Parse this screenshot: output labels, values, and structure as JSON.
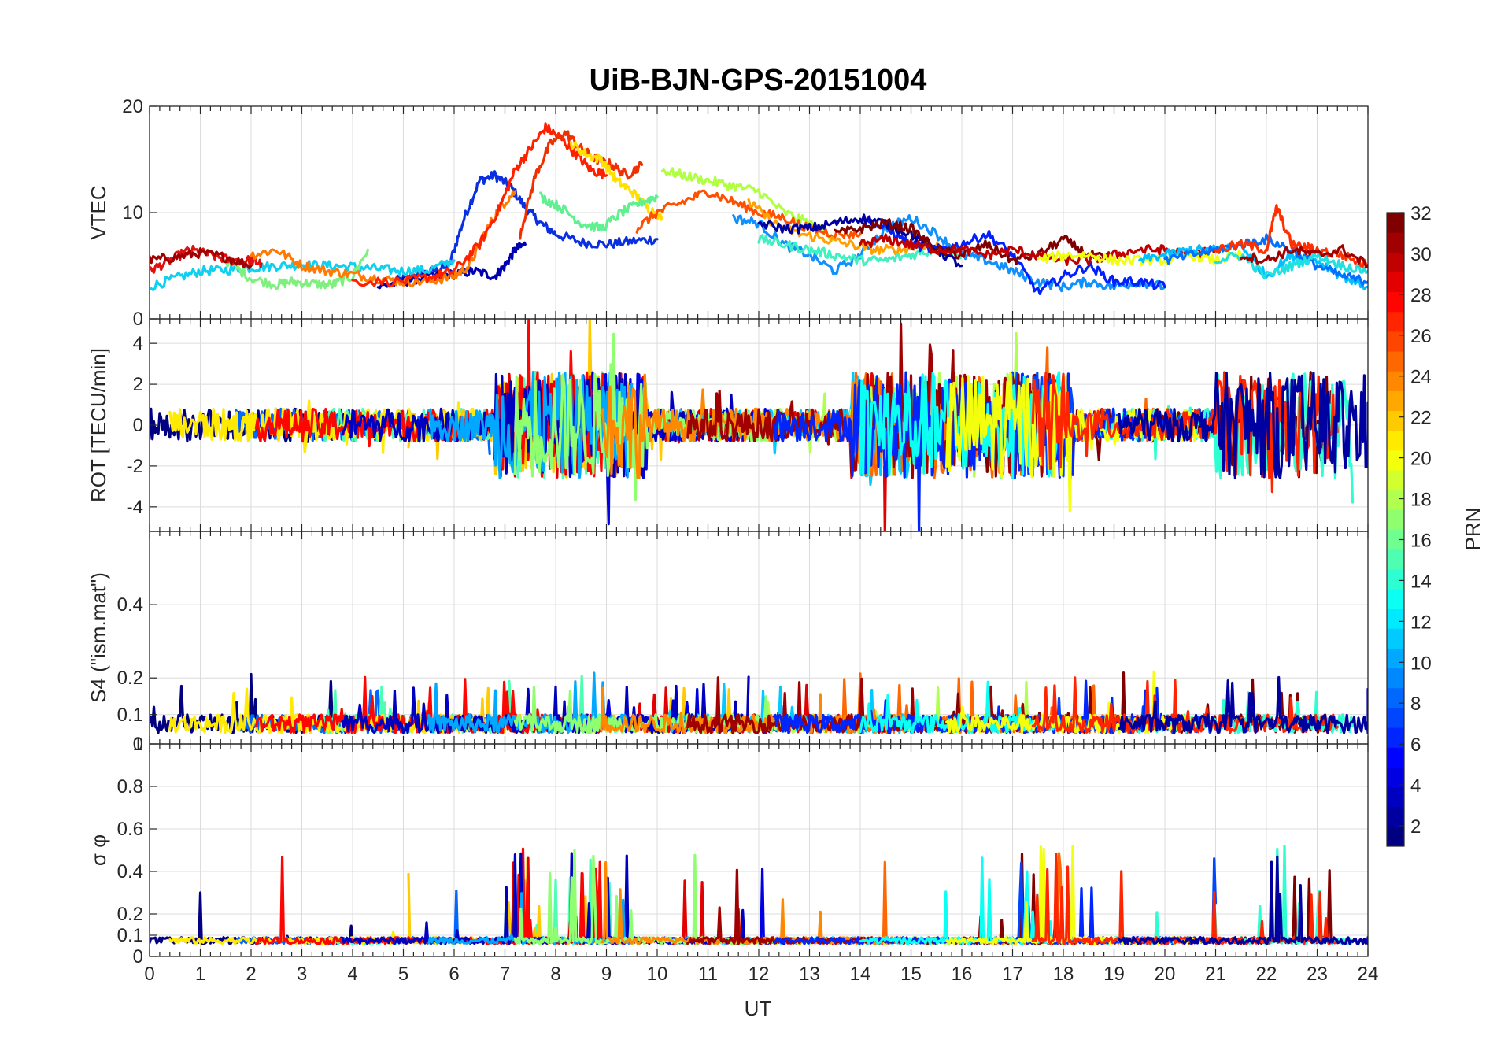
{
  "chart_data": {
    "type": "line",
    "title": "UiB-BJN-GPS-20151004",
    "xlabel": "UT",
    "xlim": [
      0,
      24
    ],
    "x_ticks": [
      "0",
      "1",
      "2",
      "3",
      "4",
      "5",
      "6",
      "7",
      "8",
      "9",
      "10",
      "11",
      "12",
      "13",
      "14",
      "15",
      "16",
      "17",
      "18",
      "19",
      "20",
      "21",
      "22",
      "23",
      "24"
    ],
    "colorbar": {
      "label": "PRN",
      "range": [
        1,
        32
      ],
      "ticks": [
        "2",
        "4",
        "6",
        "8",
        "10",
        "12",
        "14",
        "16",
        "18",
        "20",
        "22",
        "24",
        "26",
        "28",
        "30",
        "32"
      ],
      "colormap": "jet"
    },
    "panels": [
      {
        "id": "vtec",
        "ylabel": "VTEC",
        "ylim": [
          0,
          20
        ],
        "y_ticks": [
          "0",
          "10",
          "20"
        ],
        "series": [
          {
            "prn": 5,
            "color": "#0a2fe0",
            "x": [
              4.8,
              5.2,
              5.6,
              5.9,
              6.2,
              6.5,
              6.8,
              7.1,
              7.4,
              7.7,
              8.0,
              8.5,
              9.0,
              9.5,
              10.0
            ],
            "y": [
              3.5,
              4.0,
              4.5,
              5.0,
              9.5,
              13.0,
              13.5,
              12.5,
              10.5,
              9.0,
              8.0,
              7.2,
              7.0,
              7.3,
              7.5
            ]
          },
          {
            "prn": 3,
            "color": "#0000b0",
            "x": [
              4.5,
              5.0,
              5.5,
              6.0,
              6.4,
              6.8,
              7.0,
              7.2,
              7.4
            ],
            "y": [
              3.0,
              3.5,
              4.0,
              4.2,
              4.5,
              4.0,
              5.0,
              6.5,
              7.0
            ]
          },
          {
            "prn": 12,
            "color": "#10d0f0",
            "x": [
              0.0,
              0.5,
              1.0,
              1.5,
              2.0,
              2.5,
              3.0,
              3.5,
              4.0,
              4.5,
              5.0,
              5.5,
              6.0
            ],
            "y": [
              3.0,
              3.8,
              4.5,
              4.6,
              4.8,
              5.0,
              5.1,
              5.0,
              4.9,
              4.7,
              4.5,
              4.6,
              5.5
            ]
          },
          {
            "prn": 16,
            "color": "#7ff07f",
            "x": [
              1.5,
              2.0,
              2.5,
              2.8,
              3.2,
              3.6,
              4.0,
              4.3
            ],
            "y": [
              5.5,
              3.8,
              3.2,
              3.5,
              3.3,
              3.2,
              4.0,
              6.5
            ]
          },
          {
            "prn": 29,
            "color": "#e01010",
            "x": [
              0.0,
              0.4,
              0.8,
              1.2,
              1.6,
              2.0,
              2.2
            ],
            "y": [
              4.5,
              5.5,
              6.5,
              6.0,
              5.5,
              5.5,
              5.2
            ]
          },
          {
            "prn": 31,
            "color": "#a00000",
            "x": [
              0.0,
              0.5,
              1.0,
              1.5,
              2.0
            ],
            "y": [
              5.5,
              5.8,
              6.2,
              5.8,
              5.0
            ]
          },
          {
            "prn": 24,
            "color": "#ff7a00",
            "x": [
              2.0,
              2.5,
              3.0,
              3.5,
              4.0,
              4.5,
              5.0,
              5.5,
              6.0,
              6.3,
              6.6,
              6.9,
              7.2
            ],
            "y": [
              6.0,
              6.5,
              5.0,
              4.5,
              4.2,
              3.8,
              3.5,
              3.5,
              4.0,
              5.0,
              8.0,
              10.5,
              12.0
            ]
          },
          {
            "prn": 28,
            "color": "#ff2000",
            "x": [
              4.0,
              5.0,
              5.6,
              6.0,
              6.5,
              6.9,
              7.2,
              7.5,
              7.8,
              8.1,
              8.4,
              8.7,
              9.0
            ],
            "y": [
              3.5,
              3.5,
              4.0,
              4.5,
              7.0,
              10.5,
              14.0,
              16.0,
              18.0,
              17.0,
              15.5,
              14.0,
              13.5
            ]
          },
          {
            "prn": 27,
            "color": "#f03000",
            "x": [
              7.3,
              7.6,
              7.9,
              8.2,
              8.5,
              8.8,
              9.1,
              9.4,
              9.7
            ],
            "y": [
              8.0,
              13.5,
              16.5,
              17.5,
              16.0,
              15.0,
              14.5,
              13.5,
              14.5
            ]
          },
          {
            "prn": 21,
            "color": "#ffe000",
            "x": [
              8.3,
              8.6,
              8.9,
              9.2,
              9.5,
              9.8,
              10.1
            ],
            "y": [
              16.5,
              15.5,
              15.0,
              13.0,
              12.0,
              10.5,
              9.5
            ]
          },
          {
            "prn": 15,
            "color": "#60f090",
            "x": [
              7.7,
              8.1,
              8.5,
              8.9,
              9.3,
              9.7,
              10.0
            ],
            "y": [
              11.5,
              10.5,
              9.0,
              8.5,
              10.0,
              11.0,
              11.5
            ]
          },
          {
            "prn": 18,
            "color": "#b0ff40",
            "x": [
              10.1,
              10.5,
              11.0,
              11.5,
              12.0,
              12.5,
              13.0,
              13.5
            ],
            "y": [
              14.0,
              13.5,
              13.0,
              12.5,
              12.0,
              10.0,
              9.0,
              7.5
            ]
          },
          {
            "prn": 26,
            "color": "#ff5000",
            "x": [
              9.6,
              10.0,
              10.5,
              11.0,
              11.5,
              12.0,
              12.5,
              13.0,
              13.5,
              14.0
            ],
            "y": [
              8.5,
              10.0,
              11.0,
              12.0,
              11.0,
              10.0,
              9.5,
              8.5,
              8.0,
              8.0
            ]
          },
          {
            "prn": 10,
            "color": "#1090ff",
            "x": [
              11.5,
              12.0,
              12.5,
              13.0,
              13.5,
              14.0,
              14.5,
              15.0,
              15.5,
              16.0,
              16.5,
              17.0,
              17.5,
              18.0,
              18.5,
              19.0,
              19.5,
              20.0
            ],
            "y": [
              9.5,
              9.0,
              7.0,
              6.0,
              4.5,
              6.0,
              8.5,
              9.5,
              8.0,
              6.0,
              5.5,
              4.5,
              3.5,
              3.0,
              3.5,
              3.0,
              3.5,
              3.0
            ]
          },
          {
            "prn": 22,
            "color": "#ffa000",
            "x": [
              11.8,
              12.3,
              12.8,
              13.3,
              13.8,
              14.3,
              14.8,
              15.3,
              15.8
            ],
            "y": [
              11.0,
              9.0,
              8.0,
              7.5,
              7.0,
              6.5,
              6.5,
              7.0,
              6.5
            ]
          },
          {
            "prn": 14,
            "color": "#40f0c0",
            "x": [
              12.0,
              12.5,
              13.0,
              13.5,
              14.0,
              14.5,
              15.0,
              15.5,
              16.0
            ],
            "y": [
              7.5,
              7.0,
              6.5,
              6.0,
              5.5,
              5.5,
              6.0,
              6.5,
              6.0
            ]
          },
          {
            "prn": 4,
            "color": "#0020ff",
            "x": [
              14.0,
              14.5,
              15.0,
              15.5,
              16.0,
              16.5,
              17.0,
              17.5,
              18.0,
              18.5,
              19.0,
              19.5,
              20.0
            ],
            "y": [
              9.5,
              8.5,
              7.0,
              6.5,
              7.0,
              8.0,
              6.0,
              2.5,
              4.0,
              5.0,
              3.5,
              3.5,
              3.0
            ]
          },
          {
            "prn": 2,
            "color": "#0000a0",
            "x": [
              12.0,
              12.5,
              13.0,
              13.5,
              14.0,
              14.5,
              15.0,
              15.5,
              16.0
            ],
            "y": [
              9.0,
              8.5,
              8.5,
              9.0,
              9.5,
              9.0,
              8.0,
              6.5,
              5.0
            ]
          },
          {
            "prn": 32,
            "color": "#800000",
            "x": [
              13.5,
              14.0,
              14.5,
              15.0,
              15.5,
              16.0,
              16.5,
              17.0,
              17.5,
              18.0,
              18.5,
              19.0
            ],
            "y": [
              8.0,
              8.5,
              9.0,
              8.5,
              6.5,
              6.0,
              7.0,
              5.5,
              6.0,
              7.5,
              6.0,
              5.5
            ]
          },
          {
            "prn": 30,
            "color": "#c00000",
            "x": [
              14.0,
              14.5,
              15.0,
              15.5,
              16.0,
              16.5,
              17.0,
              17.5,
              18.0,
              18.5,
              19.0,
              19.5,
              20.0,
              20.5,
              21.0
            ],
            "y": [
              7.0,
              7.5,
              7.0,
              6.5,
              6.5,
              6.0,
              6.5,
              6.0,
              5.5,
              5.5,
              6.0,
              6.5,
              6.5,
              6.0,
              6.5
            ]
          },
          {
            "prn": 20,
            "color": "#f0ff10",
            "x": [
              17.5,
              18.0,
              18.5,
              19.0,
              19.5,
              20.0,
              20.5,
              21.0,
              21.5
            ],
            "y": [
              5.5,
              6.0,
              6.0,
              5.5,
              5.5,
              5.5,
              6.0,
              5.5,
              6.0
            ]
          },
          {
            "prn": 11,
            "color": "#00c0ff",
            "x": [
              19.5,
              20.0,
              20.5,
              21.0,
              21.5,
              22.0,
              22.5,
              23.0,
              23.5,
              24.0
            ],
            "y": [
              5.5,
              6.0,
              6.5,
              6.5,
              7.0,
              4.0,
              6.0,
              5.5,
              4.0,
              3.0
            ]
          },
          {
            "prn": 9,
            "color": "#0070ff",
            "x": [
              20.0,
              20.5,
              21.0,
              21.5,
              22.0,
              22.5,
              23.0,
              23.5,
              24.0
            ],
            "y": [
              5.5,
              6.0,
              6.5,
              7.0,
              7.5,
              6.5,
              5.0,
              4.0,
              3.5
            ]
          },
          {
            "prn": 13,
            "color": "#20e0e0",
            "x": [
              21.0,
              21.5,
              22.0,
              22.5,
              23.0,
              23.5,
              24.0
            ],
            "y": [
              5.5,
              6.0,
              4.0,
              5.0,
              6.0,
              5.0,
              4.5
            ]
          },
          {
            "prn": 27,
            "color": "#ff3000",
            "x": [
              21.0,
              21.5,
              22.0,
              22.2,
              22.5,
              23.0,
              23.5,
              24.0
            ],
            "y": [
              6.5,
              7.0,
              6.5,
              10.5,
              7.0,
              6.5,
              6.0,
              5.0
            ]
          },
          {
            "prn": 31,
            "color": "#a00000",
            "x": [
              21.5,
              22.0,
              22.5,
              23.0,
              23.5,
              24.0
            ],
            "y": [
              6.0,
              5.5,
              6.5,
              6.0,
              6.5,
              5.0
            ]
          }
        ]
      },
      {
        "id": "rot",
        "ylabel": "ROT [TECU/min]",
        "ylim": [
          -5.2,
          5.2
        ],
        "y_ticks": [
          "-4",
          "-2",
          "0",
          "2",
          "4"
        ],
        "noise": true
      },
      {
        "id": "s4",
        "ylabel": "S4 (\"ism.mat\")",
        "ylim": [
          0.02,
          0.6
        ],
        "y_ticks": [
          "0.1",
          "0.2",
          "0.4"
        ],
        "noise": true,
        "top_tick_label": "0"
      },
      {
        "id": "sigma",
        "ylabel": "σ φ",
        "ylim": [
          0,
          1
        ],
        "y_ticks": [
          "0",
          "0.1",
          "0.2",
          "0.4",
          "0.6",
          "0.8",
          "1"
        ],
        "noise": true
      }
    ]
  }
}
